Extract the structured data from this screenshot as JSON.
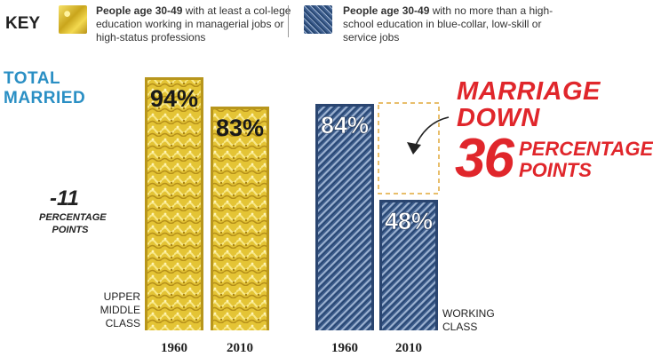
{
  "key": {
    "label": "KEY",
    "upper": {
      "bold": "People age 30-49",
      "rest": " with at least a col-lege education working in managerial jobs or high-status professions"
    },
    "working": {
      "bold": "People age 30-49",
      "rest": " with no more than a high-school education in blue-collar, low-skill or service jobs"
    },
    "colors": {
      "upper": "#e4c435",
      "working": "#3c5c8c"
    }
  },
  "total_married": {
    "line1": "TOTAL",
    "line2": "MARRIED"
  },
  "upper_change": {
    "value": "-11",
    "line1": "PERCENTAGE",
    "line2": "POINTS"
  },
  "class_labels": {
    "upper": [
      "UPPER",
      "MIDDLE",
      "CLASS"
    ],
    "working": [
      "WORKING",
      "CLASS"
    ]
  },
  "headline": {
    "line1": "MARRIAGE",
    "line2": "DOWN",
    "number": "36",
    "points1": "PERCENTAGE",
    "points2": "POINTS"
  },
  "chart_data": {
    "type": "bar",
    "title": "TOTAL MARRIED",
    "categories": [
      "1960",
      "2010"
    ],
    "series": [
      {
        "name": "UPPER MIDDLE CLASS",
        "values": [
          94,
          83
        ],
        "labels": [
          "94%",
          "83%"
        ]
      },
      {
        "name": "WORKING CLASS",
        "values": [
          84,
          48
        ],
        "labels": [
          "84%",
          "48%"
        ]
      }
    ],
    "ylim": [
      0,
      100
    ],
    "annotations": [
      {
        "series": "UPPER MIDDLE CLASS",
        "text": "-11 PERCENTAGE POINTS"
      },
      {
        "series": "WORKING CLASS",
        "text": "MARRIAGE DOWN 36 PERCENTAGE POINTS"
      }
    ],
    "grid": false,
    "legend": "top"
  }
}
